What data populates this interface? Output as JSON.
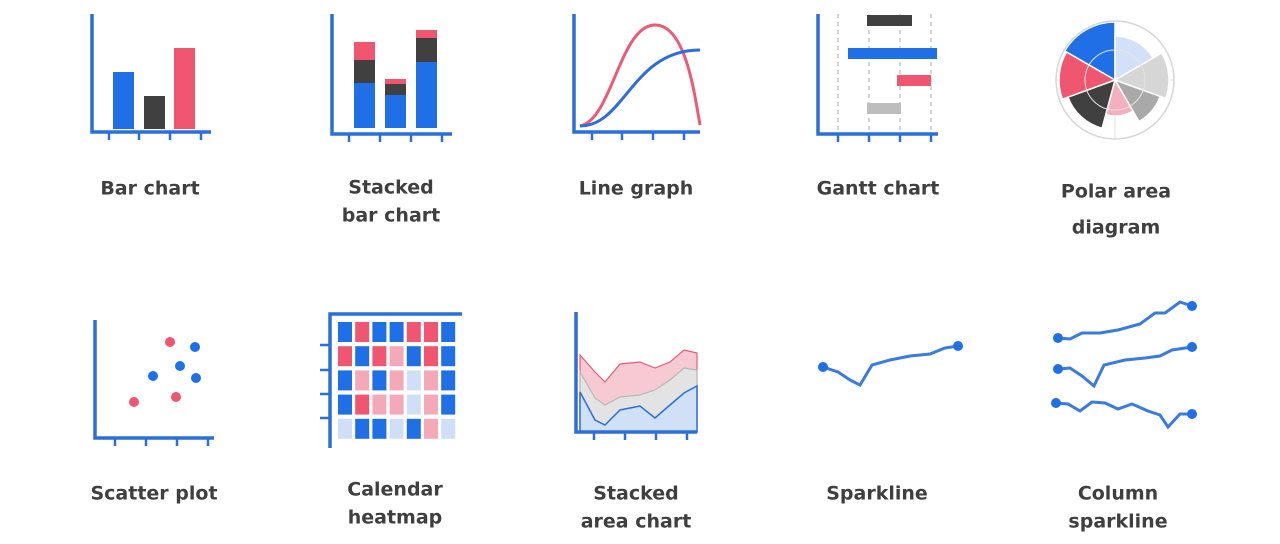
{
  "items": [
    [
      "Bar chart"
    ],
    [
      "Stacked",
      "bar chart"
    ],
    [
      "Line graph"
    ],
    [
      "Gantt chart"
    ],
    [
      "Polar area",
      "diagram"
    ],
    [
      "Scatter plot"
    ],
    [
      "Calendar",
      "heatmap"
    ],
    [
      "Stacked",
      "area chart"
    ],
    [
      "Sparkline"
    ],
    [
      "Column",
      "sparkline"
    ]
  ]
}
